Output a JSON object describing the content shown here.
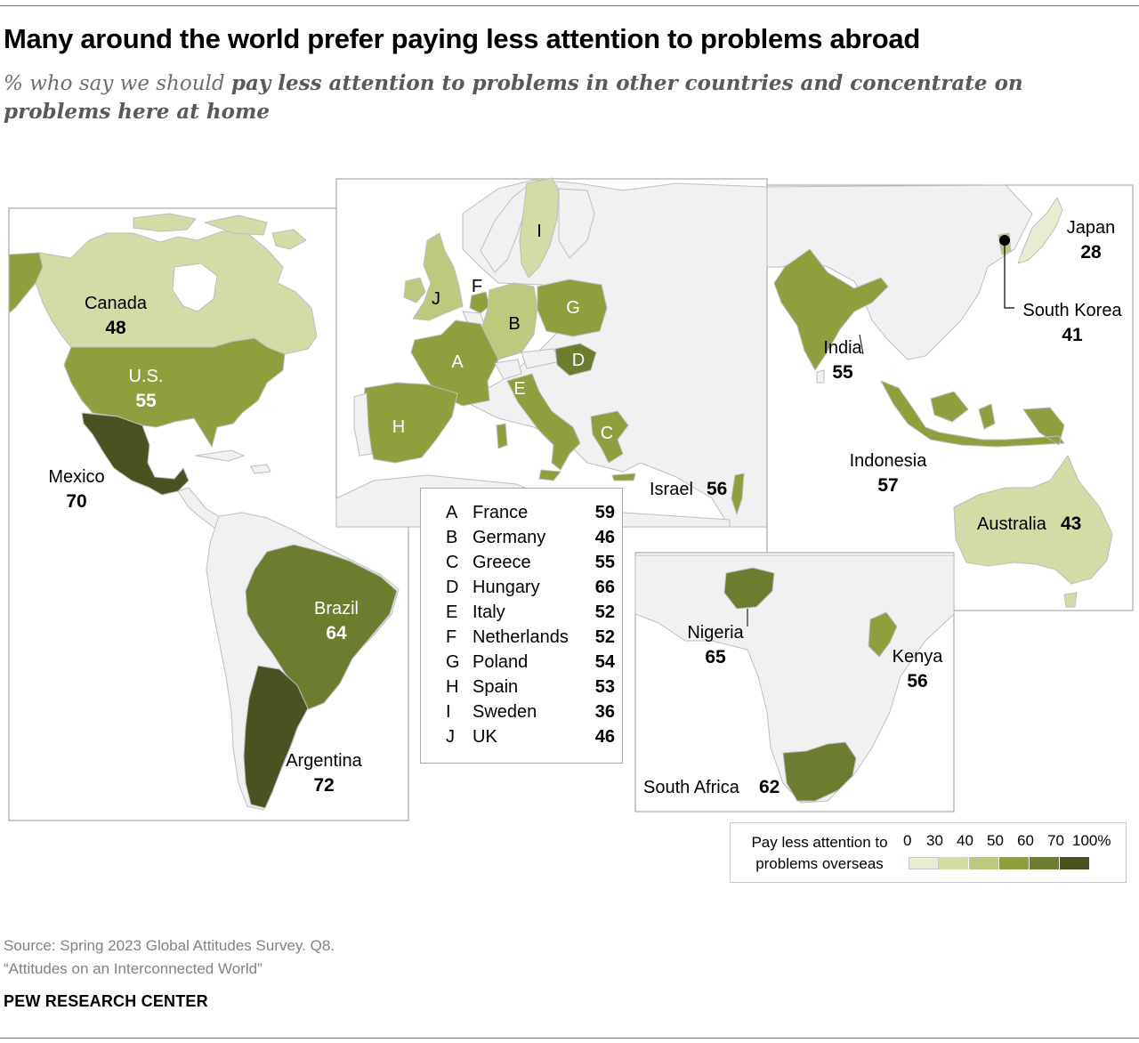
{
  "title": "Many around the world prefer paying less attention to problems abroad",
  "subtitle_prefix": "% who say we should ",
  "subtitle_bold": "pay less attention to problems in other countries and concentrate on problems here at home",
  "colors": {
    "none": "#f1f1f2",
    "border": "#bcbec0",
    "bin_0_30": "#e9ecd3",
    "bin_30_40": "#d3dba6",
    "bin_40_50": "#bcc97f",
    "bin_50_60": "#8ea03e",
    "bin_60_70": "#6c7d2f",
    "bin_70_100": "#4b5221"
  },
  "countries": {
    "canada": {
      "name": "Canada",
      "value": "48"
    },
    "us": {
      "name": "U.S.",
      "value": "55"
    },
    "mexico": {
      "name": "Mexico",
      "value": "70"
    },
    "brazil": {
      "name": "Brazil",
      "value": "64"
    },
    "argentina": {
      "name": "Argentina",
      "value": "72"
    },
    "israel": {
      "name": "Israel",
      "value": "56"
    },
    "nigeria": {
      "name": "Nigeria",
      "value": "65"
    },
    "kenya": {
      "name": "Kenya",
      "value": "56"
    },
    "south_africa": {
      "name": "South Africa",
      "value": "62"
    },
    "india": {
      "name": "India",
      "value": "55"
    },
    "indonesia": {
      "name": "Indonesia",
      "value": "57"
    },
    "japan": {
      "name": "Japan",
      "value": "28"
    },
    "south_korea": {
      "name": "South Korea",
      "value": "41"
    },
    "australia": {
      "name": "Australia",
      "value": "43"
    }
  },
  "europe_key": [
    {
      "key": "A",
      "name": "France",
      "value": "59"
    },
    {
      "key": "B",
      "name": "Germany",
      "value": "46"
    },
    {
      "key": "C",
      "name": "Greece",
      "value": "55"
    },
    {
      "key": "D",
      "name": "Hungary",
      "value": "66"
    },
    {
      "key": "E",
      "name": "Italy",
      "value": "52"
    },
    {
      "key": "F",
      "name": "Netherlands",
      "value": "52"
    },
    {
      "key": "G",
      "name": "Poland",
      "value": "54"
    },
    {
      "key": "H",
      "name": "Spain",
      "value": "53"
    },
    {
      "key": "I",
      "name": "Sweden",
      "value": "36"
    },
    {
      "key": "J",
      "name": "UK",
      "value": "46"
    }
  ],
  "scale": {
    "title": "Pay less attention to problems overseas",
    "ticks": [
      "0",
      "30",
      "40",
      "50",
      "60",
      "70",
      "100%"
    ]
  },
  "source_line1": "Source: Spring 2023 Global Attitudes Survey. Q8.",
  "source_line2": "“Attitudes on an Interconnected World”",
  "brand": "PEW RESEARCH CENTER"
}
